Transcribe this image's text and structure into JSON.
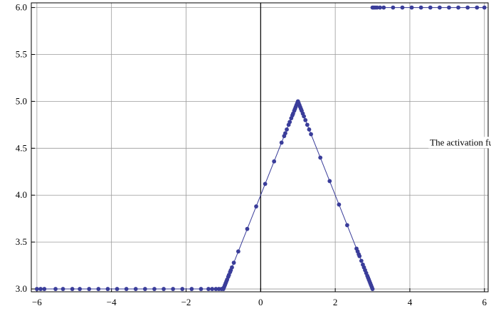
{
  "chart_data": {
    "type": "scatter",
    "title": "",
    "xlabel": "",
    "ylabel": "",
    "xlim": [
      -6.15,
      6.1
    ],
    "ylim": [
      2.97,
      6.05
    ],
    "grid": true,
    "x_ticks": [
      -6,
      -4,
      -2,
      0,
      2,
      4,
      6
    ],
    "x_tick_labels": [
      "−6",
      "−4",
      "−2",
      "0",
      "2",
      "4",
      "6"
    ],
    "y_ticks": [
      3.0,
      3.5,
      4.0,
      4.5,
      5.0,
      5.5,
      6.0
    ],
    "y_tick_labels": [
      "3.0",
      "3.5",
      "4.0",
      "4.5",
      "5.0",
      "5.5",
      "6.0"
    ],
    "annotation": {
      "text": "The activation function T",
      "x": 4.5,
      "y": 4.5
    },
    "colors": {
      "series": "#3a3d9a",
      "grid": "#9a9a9a",
      "axis": "#000000"
    },
    "series": [
      {
        "line_points": [
          [
            -6,
            3.0
          ],
          [
            -1.0,
            3.0
          ],
          [
            1.0,
            5.0
          ],
          [
            3.0,
            3.0
          ]
        ],
        "line_points_2": [
          [
            3.0,
            6.0
          ],
          [
            6.0,
            6.0
          ]
        ],
        "points": [
          [
            -6.0,
            3.0
          ],
          [
            -5.9,
            3.0
          ],
          [
            -5.8,
            3.0
          ],
          [
            -5.5,
            3.0
          ],
          [
            -5.3,
            3.0
          ],
          [
            -5.05,
            3.0
          ],
          [
            -4.85,
            3.0
          ],
          [
            -4.6,
            3.0
          ],
          [
            -4.35,
            3.0
          ],
          [
            -4.1,
            3.0
          ],
          [
            -3.85,
            3.0
          ],
          [
            -3.6,
            3.0
          ],
          [
            -3.35,
            3.0
          ],
          [
            -3.1,
            3.0
          ],
          [
            -2.85,
            3.0
          ],
          [
            -2.6,
            3.0
          ],
          [
            -2.35,
            3.0
          ],
          [
            -2.1,
            3.0
          ],
          [
            -1.85,
            3.0
          ],
          [
            -1.6,
            3.0
          ],
          [
            -1.4,
            3.0
          ],
          [
            -1.3,
            3.0
          ],
          [
            -1.2,
            3.0
          ],
          [
            -1.12,
            3.0
          ],
          [
            -1.05,
            3.0
          ],
          [
            -1.0,
            3.0
          ],
          [
            -0.98,
            3.02
          ],
          [
            -0.96,
            3.04
          ],
          [
            -0.94,
            3.06
          ],
          [
            -0.92,
            3.08
          ],
          [
            -0.9,
            3.1
          ],
          [
            -0.87,
            3.13
          ],
          [
            -0.85,
            3.15
          ],
          [
            -0.82,
            3.18
          ],
          [
            -0.8,
            3.2
          ],
          [
            -0.77,
            3.23
          ],
          [
            -0.72,
            3.28
          ],
          [
            -0.6,
            3.4
          ],
          [
            -0.36,
            3.64
          ],
          [
            -0.12,
            3.88
          ],
          [
            0.12,
            4.12
          ],
          [
            0.36,
            4.36
          ],
          [
            0.56,
            4.56
          ],
          [
            0.63,
            4.63
          ],
          [
            0.66,
            4.66
          ],
          [
            0.7,
            4.7
          ],
          [
            0.75,
            4.75
          ],
          [
            0.78,
            4.78
          ],
          [
            0.82,
            4.82
          ],
          [
            0.85,
            4.85
          ],
          [
            0.87,
            4.87
          ],
          [
            0.9,
            4.9
          ],
          [
            0.92,
            4.92
          ],
          [
            0.94,
            4.94
          ],
          [
            0.96,
            4.96
          ],
          [
            0.98,
            4.98
          ],
          [
            1.0,
            5.0
          ],
          [
            1.02,
            4.98
          ],
          [
            1.04,
            4.96
          ],
          [
            1.06,
            4.94
          ],
          [
            1.08,
            4.92
          ],
          [
            1.1,
            4.9
          ],
          [
            1.13,
            4.87
          ],
          [
            1.16,
            4.84
          ],
          [
            1.2,
            4.8
          ],
          [
            1.25,
            4.75
          ],
          [
            1.3,
            4.7
          ],
          [
            1.35,
            4.65
          ],
          [
            1.6,
            4.4
          ],
          [
            1.85,
            4.15
          ],
          [
            2.1,
            3.9
          ],
          [
            2.32,
            3.68
          ],
          [
            2.57,
            3.43
          ],
          [
            2.6,
            3.4
          ],
          [
            2.63,
            3.37
          ],
          [
            2.65,
            3.35
          ],
          [
            2.7,
            3.3
          ],
          [
            2.74,
            3.26
          ],
          [
            2.77,
            3.23
          ],
          [
            2.8,
            3.2
          ],
          [
            2.83,
            3.17
          ],
          [
            2.86,
            3.14
          ],
          [
            2.88,
            3.12
          ],
          [
            2.9,
            3.1
          ],
          [
            2.92,
            3.08
          ],
          [
            2.94,
            3.06
          ],
          [
            2.96,
            3.04
          ],
          [
            2.98,
            3.02
          ],
          [
            3.0,
            3.0
          ],
          [
            3.0,
            6.0
          ],
          [
            3.03,
            6.0
          ],
          [
            3.07,
            6.0
          ],
          [
            3.12,
            6.0
          ],
          [
            3.2,
            6.0
          ],
          [
            3.3,
            6.0
          ],
          [
            3.55,
            6.0
          ],
          [
            3.8,
            6.0
          ],
          [
            4.05,
            6.0
          ],
          [
            4.3,
            6.0
          ],
          [
            4.55,
            6.0
          ],
          [
            4.8,
            6.0
          ],
          [
            5.05,
            6.0
          ],
          [
            5.3,
            6.0
          ],
          [
            5.55,
            6.0
          ],
          [
            5.8,
            6.0
          ],
          [
            6.0,
            6.0
          ]
        ]
      }
    ]
  }
}
